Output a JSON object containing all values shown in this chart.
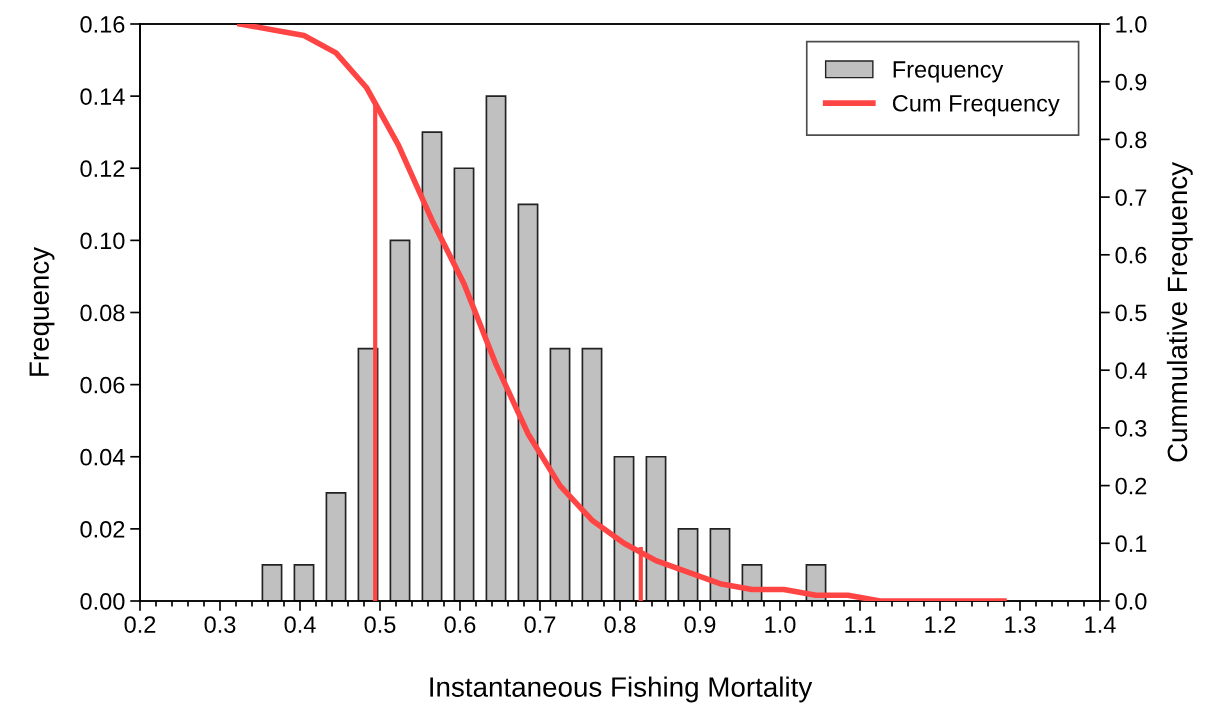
{
  "chart_data": {
    "type": "bar",
    "xlabel": "Instantaneous Fishing Mortality",
    "ylabel": "Frequency",
    "y2label": "Cummulative Frequency",
    "xlim": [
      0.2,
      1.4
    ],
    "xticks": [
      0.2,
      0.3,
      0.4,
      0.5,
      0.6,
      0.7,
      0.8,
      0.9,
      {
        "value": 1.0,
        "label": "1.0"
      },
      1.1,
      1.2,
      1.3,
      1.4
    ],
    "ylim": [
      0,
      0.16
    ],
    "yticks": [
      {
        "value": 0,
        "label": "0.00"
      },
      {
        "value": 0.02,
        "label": "0.02"
      },
      {
        "value": 0.04,
        "label": "0.04"
      },
      {
        "value": 0.06,
        "label": "0.06"
      },
      {
        "value": 0.08,
        "label": "0.08"
      },
      {
        "value": 0.1,
        "label": "0.10"
      },
      {
        "value": 0.12,
        "label": "0.12"
      },
      {
        "value": 0.14,
        "label": "0.14"
      },
      {
        "value": 0.16,
        "label": "0.16"
      }
    ],
    "y2lim": [
      0,
      1
    ],
    "y2ticks": [
      {
        "value": 0,
        "label": "0.0"
      },
      0.1,
      0.2,
      0.3,
      0.4,
      0.5,
      0.6,
      0.7,
      0.8,
      0.9,
      {
        "value": 1,
        "label": "1.0"
      }
    ],
    "legend": "top right",
    "grid": false,
    "series": [
      {
        "name": "Frequency",
        "color": "#c0c0c0",
        "x": [
          0.365,
          0.405,
          0.445,
          0.485,
          0.525,
          0.565,
          0.605,
          0.645,
          0.685,
          0.725,
          0.765,
          0.805,
          0.845,
          0.885,
          0.925,
          0.965,
          1.045
        ],
        "values": [
          0.01,
          0.01,
          0.03,
          0.07,
          0.1,
          0.13,
          0.12,
          0.14,
          0.11,
          0.07,
          0.07,
          0.04,
          0.04,
          0.02,
          0.02,
          0.01,
          0.01
        ]
      },
      {
        "name": "Cum Frequency",
        "type": "line",
        "axis": "y2",
        "color": "#ff4444",
        "x": [
          0.325,
          0.405,
          0.445,
          0.483,
          0.523,
          0.565,
          0.605,
          0.645,
          0.685,
          0.725,
          0.765,
          0.805,
          0.845,
          0.885,
          0.925,
          0.965,
          1.005,
          1.045,
          1.085,
          1.125,
          1.28
        ],
        "values": [
          1.0,
          0.98,
          0.95,
          0.89,
          0.79,
          0.66,
          0.55,
          0.41,
          0.29,
          0.2,
          0.14,
          0.1,
          0.07,
          0.05,
          0.03,
          0.02,
          0.02,
          0.01,
          0.01,
          0.0,
          0.0
        ]
      },
      {
        "type": "line",
        "axis": "y2",
        "color": "#ff4444",
        "x": [
          0.494,
          0.494
        ],
        "values": [
          0,
          0.86
        ]
      },
      {
        "type": "line",
        "axis": "y2",
        "color": "#ff4444",
        "x": [
          0.826,
          0.826
        ],
        "values": [
          0,
          0.09
        ]
      }
    ]
  }
}
